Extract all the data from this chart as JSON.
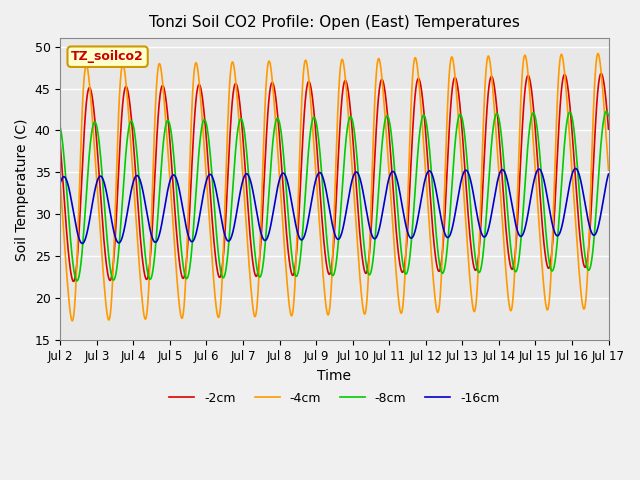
{
  "title": "Tonzi Soil CO2 Profile: Open (East) Temperatures",
  "xlabel": "Time",
  "ylabel": "Soil Temperature (C)",
  "ylim": [
    15,
    51
  ],
  "yticks": [
    15,
    20,
    25,
    30,
    35,
    40,
    45,
    50
  ],
  "xlim_days": [
    2.0,
    17.0
  ],
  "xtick_days": [
    2,
    3,
    4,
    5,
    6,
    7,
    8,
    9,
    10,
    11,
    12,
    13,
    14,
    15,
    16,
    17
  ],
  "xtick_labels": [
    "Jul 2",
    "Jul 3",
    "Jul 4",
    "Jul 5",
    "Jul 6",
    "Jul 7",
    "Jul 8",
    "Jul 9",
    "Jul 10",
    "Jul 11",
    "Jul 12",
    "Jul 13",
    "Jul 14",
    "Jul 15",
    "Jul 16",
    "Jul 17"
  ],
  "series": [
    {
      "label": "-2cm",
      "color": "#dd0000",
      "mean": 33.5,
      "amp1": 11.5,
      "amp2": 3.0,
      "phase_days": 0.58,
      "trend": 0.12,
      "skew": 0.35
    },
    {
      "label": "-4cm",
      "color": "#ff9900",
      "mean": 32.5,
      "amp1": 14.5,
      "amp2": 5.0,
      "phase_days": 0.52,
      "trend": 0.1,
      "skew": 0.55
    },
    {
      "label": "-8cm",
      "color": "#00cc00",
      "mean": 31.5,
      "amp1": 9.5,
      "amp2": 1.5,
      "phase_days": 0.7,
      "trend": 0.09,
      "skew": 0.15
    },
    {
      "label": "-16cm",
      "color": "#0000cc",
      "mean": 30.5,
      "amp1": 4.0,
      "amp2": 0.5,
      "phase_days": 0.85,
      "trend": 0.07,
      "skew": 0.05
    }
  ],
  "legend_label": "TZ_soilco2",
  "background_color": "#e8e8e8",
  "grid_color": "#ffffff",
  "fig_bg": "#f0f0f0"
}
